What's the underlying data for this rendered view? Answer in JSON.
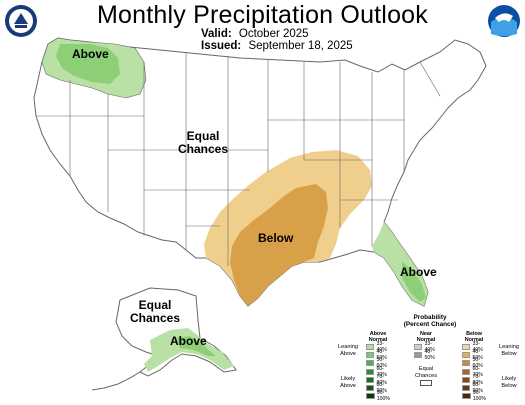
{
  "header": {
    "title": "Monthly Precipitation Outlook",
    "valid_label": "Valid:",
    "valid_value": "October 2025",
    "issued_label": "Issued:",
    "issued_value": "September 18, 2025"
  },
  "logos": {
    "left": "doc-seal-icon",
    "right": "noaa-logo-icon"
  },
  "regions": {
    "northwest": "Above",
    "interior": [
      "Equal",
      "Chances"
    ],
    "south_central": "Below",
    "florida": "Above",
    "alaska_interior": [
      "Equal",
      "Chances"
    ],
    "alaska_south": "Above"
  },
  "legend": {
    "title": [
      "Probability",
      "(Percent Chance)"
    ],
    "above_head": [
      "Above",
      "Normal"
    ],
    "near_head": [
      "Near",
      "Normal"
    ],
    "below_head": [
      "Below",
      "Normal"
    ],
    "equal_label": [
      "Equal",
      "Chances"
    ],
    "leaning_above": [
      "Leaning",
      "Above"
    ],
    "likely_above": [
      "Likely",
      "Above"
    ],
    "leaning_below": [
      "Leaning",
      "Below"
    ],
    "likely_below": [
      "Likely",
      "Below"
    ],
    "ranges": [
      "33-40%",
      "40-50%",
      "50-60%",
      "60-70%",
      "70-80%",
      "80-90%",
      "90-100%"
    ],
    "near_ranges": [
      "33-40%",
      "40-50%"
    ],
    "above_colors": [
      "#b2dea0",
      "#7fc97f",
      "#4daf4a",
      "#2e8b2e",
      "#1f6e1f",
      "#135313",
      "#0a3a0a"
    ],
    "near_colors": [
      "#cfcfcf",
      "#9a9a9a"
    ],
    "below_colors": [
      "#f3d9a0",
      "#e0b060",
      "#c98a3a",
      "#a8622a",
      "#86481e",
      "#683616",
      "#4a2510"
    ],
    "equal_color": "#ffffff"
  },
  "colors": {
    "above_light": "#b9e0a5",
    "above_mid": "#8ccf76",
    "below_light": "#f0cf8c",
    "below_mid": "#d9a04a",
    "border": "#666666"
  }
}
